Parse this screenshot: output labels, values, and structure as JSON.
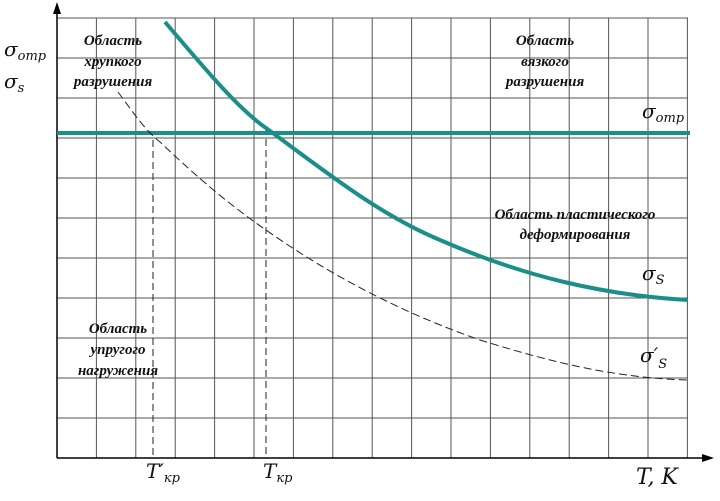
{
  "axis_labels": {
    "y": [
      {
        "symbol": "σ",
        "sub": "отр"
      },
      {
        "symbol": "σ",
        "sub": "s"
      }
    ],
    "x": "T, K",
    "x_marks": [
      {
        "symbol": "T′",
        "sub": "кр"
      },
      {
        "symbol": "T",
        "sub": "кр"
      }
    ]
  },
  "regions": {
    "brittle": [
      "Область",
      "хрупкого",
      "разрушения"
    ],
    "ductile": [
      "Область",
      "вязкого",
      "разрушения"
    ],
    "plastic": [
      "Область пластического",
      "деформирования"
    ],
    "elastic": [
      "Область",
      "упругого",
      "нагружения"
    ]
  },
  "curve_labels": {
    "fracture_stress": {
      "symbol": "σ",
      "sub": "отр"
    },
    "yield_stress": {
      "symbol": "σ",
      "sub": "S"
    },
    "yield_stress_prime": {
      "symbol": "σ′",
      "sub": "S"
    }
  }
}
